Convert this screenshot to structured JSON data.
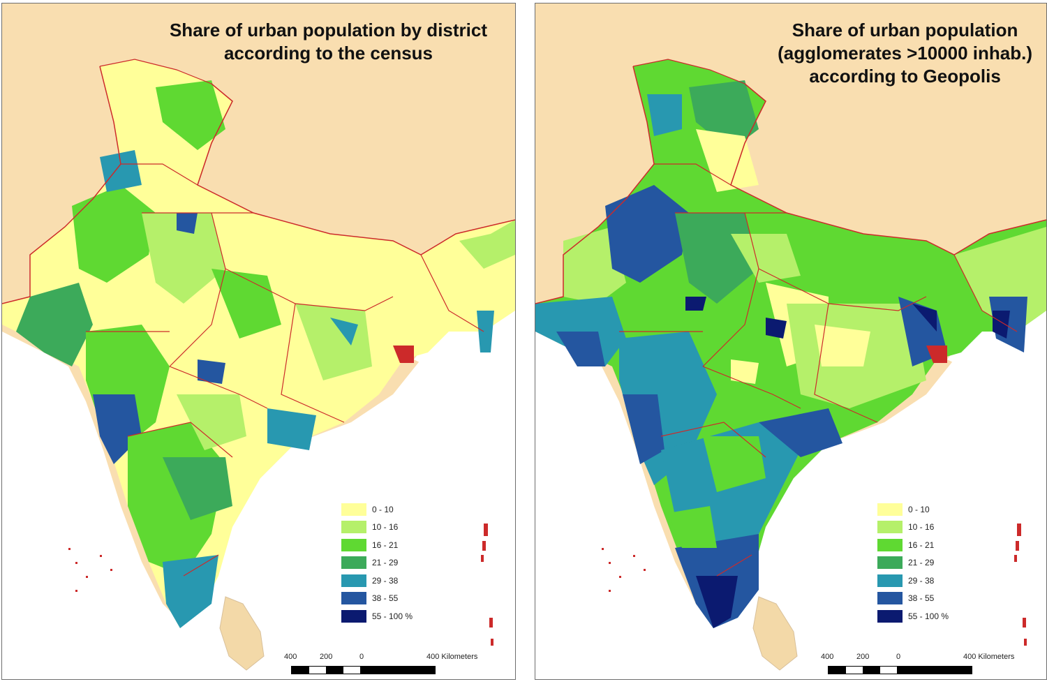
{
  "colors": {
    "land_bg": "#f9deb0",
    "sea": "#ffffff",
    "border": "#cc2a2a",
    "classes": [
      "#ffff99",
      "#b5f06a",
      "#5fd932",
      "#3caa5a",
      "#2898b0",
      "#2456a0",
      "#0b1a70"
    ]
  },
  "left_map": {
    "title_line1": "Share of urban population by district",
    "title_line2": "according to the census",
    "title_line3": ""
  },
  "right_map": {
    "title_line1": "Share of urban population",
    "title_line2": "(agglomerates >10000 inhab.)",
    "title_line3": "according to Geopolis"
  },
  "legend": {
    "classes": [
      "0 - 10",
      "10 - 16",
      "16 - 21",
      "21 - 29",
      "29 - 38",
      "38 - 55",
      "55 - 100 %"
    ]
  },
  "scale": {
    "label_400_left": "400",
    "label_200": "200",
    "label_0": "0",
    "label_400_right": "400 Kilometers"
  }
}
